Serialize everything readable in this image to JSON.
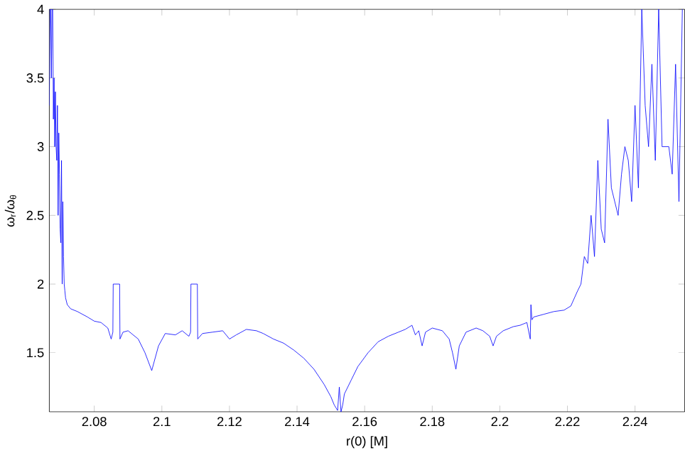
{
  "chart_data": {
    "type": "line",
    "xlabel": "r(0) [M]",
    "ylabel": "ω$_{r}$/ω$_{θ}$",
    "color": "#0000ff",
    "xlim": [
      2.0667,
      2.2547
    ],
    "ylim": [
      1.07,
      4
    ],
    "xticks": [
      2.08,
      2.1,
      2.12,
      2.14,
      2.16,
      2.18,
      2.2,
      2.22,
      2.24
    ],
    "yticks": [
      1.5,
      2,
      2.5,
      3,
      3.5,
      4
    ],
    "x": [
      2.0667,
      2.0669,
      2.0671,
      2.0673,
      2.0675,
      2.0677,
      2.0679,
      2.0681,
      2.0683,
      2.0685,
      2.0687,
      2.0689,
      2.0691,
      2.0693,
      2.0695,
      2.0697,
      2.0699,
      2.0701,
      2.0703,
      2.0705,
      2.0707,
      2.0709,
      2.0711,
      2.0713,
      2.0715,
      2.072,
      2.073,
      2.075,
      2.078,
      2.08,
      2.082,
      2.084,
      2.085,
      2.0855,
      2.0856,
      2.0875,
      2.0876,
      2.0885,
      2.09,
      2.093,
      2.095,
      2.097,
      2.099,
      2.101,
      2.104,
      2.106,
      2.108,
      2.1085,
      2.1086,
      2.1105,
      2.1106,
      2.112,
      2.115,
      2.118,
      2.12,
      2.122,
      2.125,
      2.128,
      2.13,
      2.133,
      2.136,
      2.139,
      2.142,
      2.145,
      2.148,
      2.15,
      2.151,
      2.152,
      2.1525,
      2.153,
      2.1535,
      2.154,
      2.156,
      2.158,
      2.161,
      2.164,
      2.167,
      2.17,
      2.172,
      2.174,
      2.175,
      2.176,
      2.177,
      2.178,
      2.18,
      2.183,
      2.185,
      2.186,
      2.187,
      2.188,
      2.19,
      2.193,
      2.195,
      2.197,
      2.198,
      2.199,
      2.201,
      2.204,
      2.206,
      2.208,
      2.209,
      2.2092,
      2.2095,
      2.21,
      2.213,
      2.216,
      2.219,
      2.221,
      2.223,
      2.224,
      2.225,
      2.226,
      2.227,
      2.228,
      2.229,
      2.23,
      2.231,
      2.232,
      2.233,
      2.234,
      2.235,
      2.236,
      2.237,
      2.238,
      2.239,
      2.24,
      2.241,
      2.242,
      2.243,
      2.244,
      2.245,
      2.246,
      2.247,
      2.248,
      2.249,
      2.25,
      2.251,
      2.252,
      2.253,
      2.254
    ],
    "values": [
      3.3,
      4.0,
      4.0,
      3.5,
      4.0,
      4.0,
      3.2,
      3.5,
      3.0,
      3.4,
      3.0,
      2.9,
      3.3,
      2.5,
      3.1,
      2.8,
      2.4,
      2.3,
      2.9,
      2.0,
      2.6,
      2.2,
      2.0,
      1.95,
      1.9,
      1.85,
      1.82,
      1.8,
      1.76,
      1.73,
      1.72,
      1.68,
      1.6,
      1.65,
      2.0,
      2.0,
      1.6,
      1.65,
      1.66,
      1.6,
      1.5,
      1.37,
      1.55,
      1.64,
      1.63,
      1.66,
      1.62,
      1.65,
      2.0,
      2.0,
      1.6,
      1.64,
      1.65,
      1.66,
      1.6,
      1.63,
      1.67,
      1.66,
      1.64,
      1.6,
      1.57,
      1.52,
      1.46,
      1.38,
      1.27,
      1.18,
      1.12,
      1.08,
      1.25,
      1.07,
      1.12,
      1.2,
      1.3,
      1.4,
      1.5,
      1.58,
      1.62,
      1.65,
      1.67,
      1.7,
      1.63,
      1.66,
      1.55,
      1.65,
      1.68,
      1.66,
      1.6,
      1.5,
      1.38,
      1.55,
      1.65,
      1.68,
      1.66,
      1.62,
      1.55,
      1.62,
      1.66,
      1.69,
      1.7,
      1.72,
      1.6,
      1.85,
      1.74,
      1.76,
      1.78,
      1.8,
      1.81,
      1.84,
      1.95,
      2.0,
      2.2,
      2.15,
      2.5,
      2.2,
      2.9,
      2.4,
      2.3,
      3.2,
      2.7,
      2.6,
      2.5,
      2.8,
      3.0,
      2.9,
      2.6,
      3.3,
      2.7,
      4.0,
      3.3,
      3.0,
      3.6,
      2.9,
      4.0,
      3.0,
      3.0,
      3.0,
      2.8,
      3.6,
      2.6,
      4.0
    ]
  }
}
